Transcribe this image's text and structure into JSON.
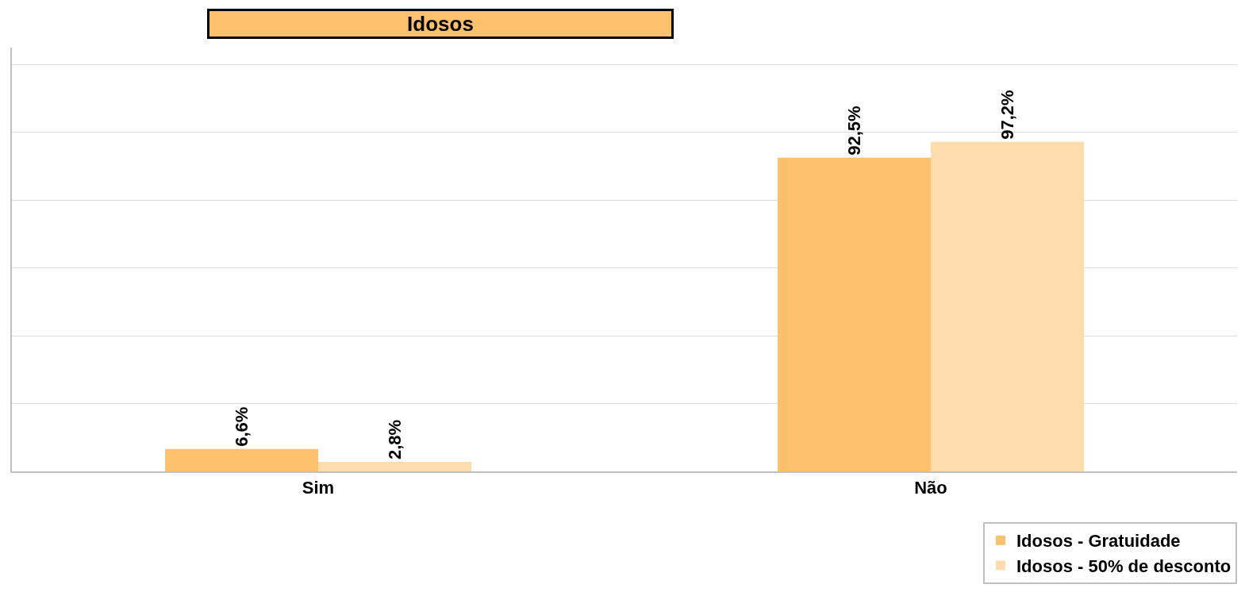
{
  "chart_data": {
    "type": "bar",
    "title": "Idosos",
    "categories": [
      "Sim",
      "Não"
    ],
    "series": [
      {
        "name": "Idosos - Gratuidade",
        "color": "#fdc06d",
        "values": [
          6.6,
          92.5
        ],
        "value_labels": [
          "6,6%",
          "92,5%"
        ]
      },
      {
        "name": "Idosos - 50% de desconto",
        "color": "#fedcab",
        "values": [
          2.8,
          97.2
        ],
        "value_labels": [
          "2,8%",
          "97,2%"
        ]
      }
    ],
    "ylim": [
      0,
      125
    ],
    "yticks": [
      {
        "value": 0,
        "label": null
      },
      {
        "value": 20,
        "label": null
      },
      {
        "value": 40,
        "label": null
      },
      {
        "value": 60,
        "label": null
      },
      {
        "value": 80,
        "label": null
      },
      {
        "value": 100,
        "label": null
      },
      {
        "value": 120,
        "label": null
      }
    ],
    "grid": "y",
    "legend": "bottom right",
    "tick_labels": "x"
  }
}
